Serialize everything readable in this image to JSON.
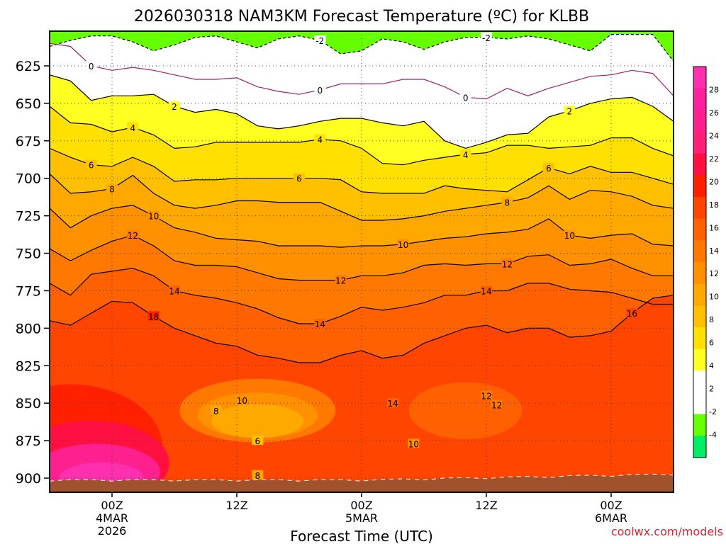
{
  "chart_data": {
    "type": "heatmap",
    "title": "2026030318 NAM3KM Forecast Temperature (ºC) for KLBB",
    "xlabel": "Forecast Time (UTC)",
    "ylabel": "",
    "ylim": [
      912,
      602
    ],
    "y_ticks": [
      625,
      650,
      675,
      700,
      725,
      750,
      775,
      800,
      825,
      850,
      875,
      900
    ],
    "x_ticks": [
      {
        "hour": 6,
        "label": "00Z",
        "sub1": "4MAR",
        "sub2": "2026"
      },
      {
        "hour": 18,
        "label": "12Z",
        "sub1": "",
        "sub2": ""
      },
      {
        "hour": 30,
        "label": "00Z",
        "sub1": "5MAR",
        "sub2": ""
      },
      {
        "hour": 42,
        "label": "12Z",
        "sub1": "",
        "sub2": ""
      },
      {
        "hour": 54,
        "label": "00Z",
        "sub1": "6MAR",
        "sub2": ""
      }
    ],
    "x_range_hours": [
      0,
      60
    ],
    "grid": true,
    "colorbar": {
      "levels": [
        -6,
        -4,
        -2,
        0,
        2,
        4,
        6,
        8,
        10,
        12,
        14,
        16,
        18,
        20,
        22,
        24,
        26,
        28,
        30
      ],
      "tick_labels": [
        "-4",
        "-2",
        "2",
        "4",
        "6",
        "8",
        "10",
        "12",
        "14",
        "16",
        "18",
        "20",
        "22",
        "24",
        "26",
        "28"
      ],
      "colors": [
        "#00ee66",
        "#66ff00",
        "#ffffff",
        "#ffffff",
        "#ffff22",
        "#ffe000",
        "#ffc000",
        "#ffa800",
        "#ff9000",
        "#ff7800",
        "#ff6000",
        "#ff4500",
        "#ff2000",
        "#ff1040",
        "#ff2078",
        "#ff2090",
        "#ff20a0",
        "#ff30b0"
      ]
    },
    "contours": [
      {
        "temp": -2,
        "pressure": [
          612,
          608,
          605,
          605,
          609,
          615,
          611,
          606,
          605,
          609,
          613,
          607,
          605,
          608,
          617,
          615,
          607,
          609,
          614,
          609,
          606,
          606,
          607,
          605,
          607,
          611,
          615,
          604,
          604,
          604,
          622
        ]
      },
      {
        "temp": 0,
        "pressure": [
          610,
          612,
          625,
          628,
          626,
          628,
          631,
          634,
          634,
          633,
          639,
          642,
          644,
          641,
          637,
          637,
          637,
          634,
          634,
          639,
          646,
          647,
          640,
          645,
          640,
          636,
          632,
          631,
          628,
          630,
          645
        ]
      },
      {
        "temp": 2,
        "pressure": [
          631,
          635,
          648,
          645,
          645,
          644,
          652,
          656,
          654,
          657,
          665,
          667,
          665,
          662,
          660,
          660,
          663,
          665,
          662,
          675,
          680,
          676,
          671,
          670,
          659,
          655,
          650,
          647,
          646,
          652,
          662
        ]
      },
      {
        "temp": 4,
        "pressure": [
          652,
          663,
          664,
          669,
          666,
          671,
          680,
          679,
          676,
          676,
          676,
          676,
          676,
          674,
          675,
          680,
          690,
          691,
          688,
          686,
          684,
          683,
          678,
          678,
          680,
          679,
          678,
          673,
          673,
          680,
          685
        ]
      },
      {
        "temp": 6,
        "pressure": [
          680,
          686,
          691,
          692,
          686,
          692,
          702,
          701,
          701,
          700,
          700,
          700,
          700,
          700,
          701,
          709,
          710,
          710,
          710,
          705,
          707,
          708,
          709,
          701,
          693,
          697,
          692,
          696,
          696,
          700,
          704
        ]
      },
      {
        "temp": 8,
        "pressure": [
          697,
          710,
          709,
          707,
          698,
          710,
          718,
          720,
          718,
          715,
          715,
          716,
          716,
          716,
          722,
          728,
          728,
          727,
          725,
          722,
          720,
          718,
          716,
          713,
          705,
          714,
          708,
          709,
          712,
          718,
          720
        ]
      },
      {
        "temp": 10,
        "pressure": [
          720,
          733,
          725,
          720,
          718,
          725,
          733,
          736,
          740,
          741,
          742,
          745,
          745,
          745,
          746,
          745,
          745,
          744,
          742,
          740,
          739,
          737,
          736,
          734,
          727,
          738,
          740,
          738,
          737,
          744,
          745
        ]
      },
      {
        "temp": 12,
        "pressure": [
          747,
          755,
          748,
          742,
          738,
          745,
          755,
          758,
          758,
          759,
          763,
          767,
          768,
          768,
          768,
          765,
          765,
          763,
          758,
          757,
          758,
          757,
          757,
          752,
          751,
          758,
          757,
          754,
          760,
          765,
          765
        ]
      },
      {
        "temp": 14,
        "pressure": [
          770,
          778,
          764,
          762,
          760,
          765,
          775,
          778,
          780,
          783,
          787,
          793,
          797,
          797,
          792,
          786,
          788,
          786,
          783,
          778,
          778,
          775,
          775,
          770,
          770,
          774,
          775,
          776,
          780,
          784,
          784
        ]
      },
      {
        "temp": 16,
        "pressure": [
          795,
          798,
          790,
          782,
          783,
          792,
          800,
          805,
          810,
          812,
          818,
          820,
          823,
          823,
          818,
          815,
          820,
          818,
          810,
          805,
          800,
          798,
          803,
          800,
          800,
          806,
          805,
          802,
          790,
          780,
          778
        ]
      }
    ],
    "annotations": [
      "0",
      "-2",
      "-2",
      "0",
      "0",
      "2",
      "2",
      "4",
      "4",
      "4",
      "6",
      "6",
      "6",
      "8",
      "8",
      "10",
      "10",
      "10",
      "12",
      "12",
      "12",
      "14",
      "14",
      "14",
      "18",
      "16",
      "10",
      "8",
      "6",
      "8",
      "12",
      "12",
      "10",
      "14"
    ]
  },
  "watermark": "coolwx.com/models",
  "colors": {
    "terrain": "#a0522d",
    "frame": "#000000",
    "watermark": "#dd2233",
    "zero_contour": "#a0206a"
  }
}
